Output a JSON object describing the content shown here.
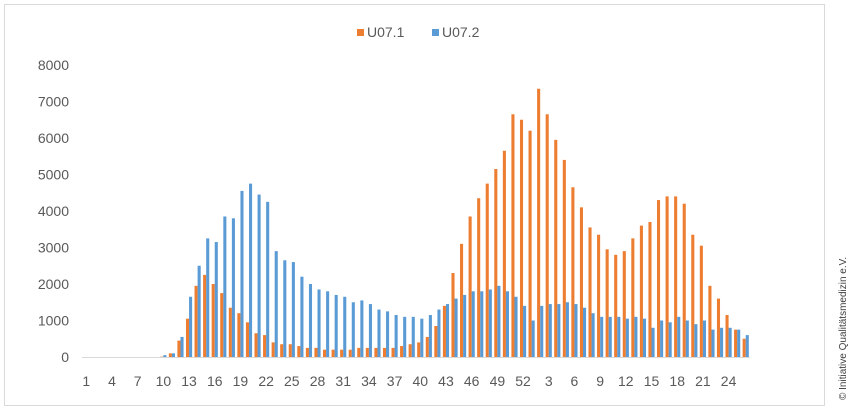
{
  "chart_data": {
    "type": "bar",
    "title": "",
    "xlabel": "",
    "ylabel": "",
    "ylim": [
      0,
      8000
    ],
    "yticks": [
      0,
      1000,
      2000,
      3000,
      4000,
      5000,
      6000,
      7000,
      8000
    ],
    "grid": false,
    "legend": "top-center",
    "categories": [
      "1",
      "2",
      "3",
      "4",
      "5",
      "6",
      "7",
      "8",
      "9",
      "10",
      "11",
      "12",
      "13",
      "14",
      "15",
      "16",
      "17",
      "18",
      "19",
      "20",
      "21",
      "22",
      "23",
      "24",
      "25",
      "26",
      "27",
      "28",
      "29",
      "30",
      "31",
      "32",
      "33",
      "34",
      "35",
      "36",
      "37",
      "38",
      "39",
      "40",
      "41",
      "42",
      "43",
      "44",
      "45",
      "46",
      "47",
      "48",
      "49",
      "50",
      "51",
      "52",
      "53",
      "1",
      "2",
      "3",
      "4",
      "5",
      "6",
      "7",
      "8",
      "9",
      "10",
      "11",
      "12",
      "13",
      "14",
      "15",
      "16",
      "17",
      "18",
      "19",
      "20",
      "21",
      "22",
      "23",
      "24",
      "25"
    ],
    "tick_labels": [
      "1",
      "4",
      "7",
      "10",
      "13",
      "16",
      "19",
      "22",
      "25",
      "28",
      "31",
      "34",
      "37",
      "40",
      "43",
      "46",
      "49",
      "52",
      "3",
      "6",
      "9",
      "12",
      "15",
      "18",
      "21",
      "24"
    ],
    "series": [
      {
        "name": "U07.1",
        "color": "#ed7d31",
        "values": [
          0,
          0,
          0,
          0,
          0,
          0,
          0,
          0,
          0,
          10,
          100,
          450,
          1050,
          1950,
          2250,
          2000,
          1750,
          1350,
          1200,
          950,
          650,
          600,
          400,
          350,
          350,
          300,
          250,
          250,
          200,
          200,
          200,
          200,
          250,
          250,
          250,
          250,
          250,
          300,
          350,
          400,
          550,
          850,
          1400,
          2300,
          3100,
          3850,
          4350,
          4750,
          5150,
          5650,
          6650,
          6500,
          6200,
          7350,
          6650,
          5950,
          5400,
          4650,
          4100,
          3550,
          3350,
          2950,
          2800,
          2900,
          3250,
          3600,
          3700,
          4300,
          4400,
          4400,
          4200,
          3350,
          3050,
          1950,
          1600,
          1150,
          750,
          500
        ]
      },
      {
        "name": "U07.2",
        "color": "#5b9bd5",
        "values": [
          0,
          0,
          0,
          0,
          0,
          0,
          0,
          0,
          0,
          50,
          100,
          550,
          1650,
          2500,
          3250,
          3150,
          3850,
          3800,
          4550,
          4750,
          4450,
          4250,
          2900,
          2650,
          2600,
          2200,
          2000,
          1850,
          1800,
          1700,
          1650,
          1500,
          1550,
          1450,
          1300,
          1250,
          1150,
          1100,
          1100,
          1050,
          1150,
          1300,
          1450,
          1600,
          1700,
          1800,
          1800,
          1850,
          1950,
          1800,
          1650,
          1400,
          1000,
          1400,
          1450,
          1450,
          1500,
          1450,
          1350,
          1200,
          1100,
          1100,
          1100,
          1050,
          1100,
          1050,
          800,
          1000,
          950,
          1100,
          1000,
          900,
          1000,
          750,
          800,
          800,
          750,
          600
        ]
      }
    ]
  },
  "copyright": "© Initiative Qualitätsmedizin e.V."
}
